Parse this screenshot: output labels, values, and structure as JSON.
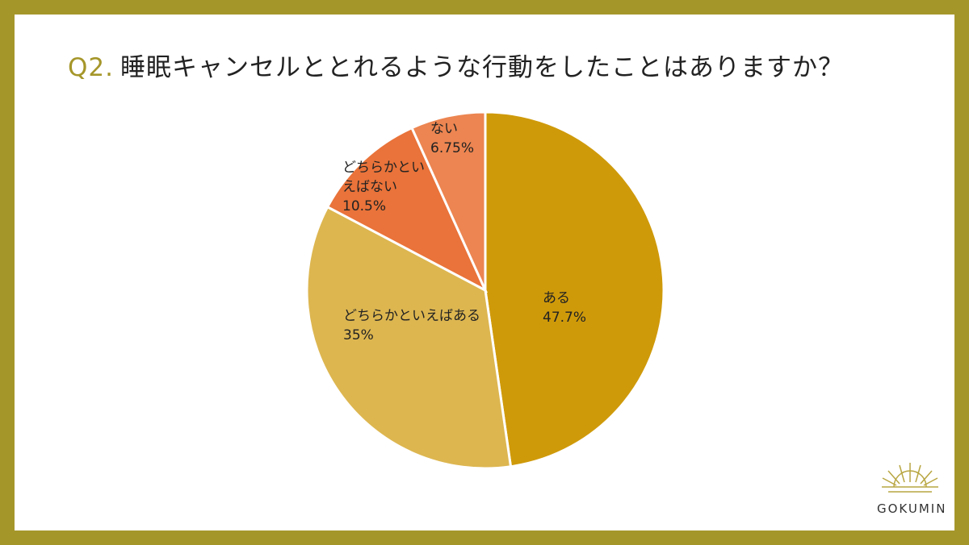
{
  "chart_data": {
    "type": "pie",
    "question_label": "Q2.",
    "title": "睡眠キャンセルととれるような行動をしたことはありますか？",
    "categories": [
      "ある",
      "どちらかといえばある",
      "どちらかといえばない",
      "ない"
    ],
    "values": [
      47.7,
      35,
      10.5,
      6.75
    ],
    "value_labels": [
      "47.7%",
      "35%",
      "10.5%",
      "6.75%"
    ],
    "colors": [
      "#cf9a0a",
      "#ddb650",
      "#e9733a",
      "#ec8551"
    ]
  },
  "logo": "GOKUMIN"
}
